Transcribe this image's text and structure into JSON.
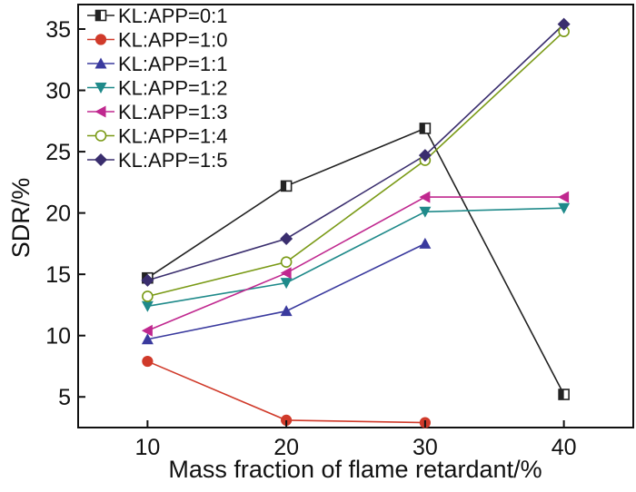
{
  "chart_data": {
    "type": "line",
    "title": "",
    "xlabel": "Mass fraction of flame retardant/%",
    "ylabel": "SDR/%",
    "x": [
      10,
      20,
      30,
      40
    ],
    "xticks": [
      10,
      20,
      30,
      40
    ],
    "yticks": [
      5,
      10,
      15,
      20,
      25,
      30,
      35
    ],
    "xlim": [
      5,
      45
    ],
    "ylim": [
      2.5,
      37
    ],
    "grid": false,
    "legend_position": "top-left",
    "series": [
      {
        "name": "KL:APP=0:1",
        "color": "#222222",
        "marker": "square-half",
        "x": [
          10,
          20,
          30,
          40
        ],
        "values": [
          14.7,
          22.2,
          26.9,
          5.2
        ]
      },
      {
        "name": "KL:APP=1:0",
        "color": "#d03a2a",
        "marker": "circle-filled",
        "x": [
          10,
          20,
          30
        ],
        "values": [
          7.9,
          3.1,
          2.9
        ]
      },
      {
        "name": "KL:APP=1:1",
        "color": "#3a3a9e",
        "marker": "triangle-up",
        "x": [
          10,
          20,
          30
        ],
        "values": [
          9.7,
          12.0,
          17.5
        ]
      },
      {
        "name": "KL:APP=1:2",
        "color": "#1f8a8a",
        "marker": "triangle-down",
        "x": [
          10,
          20,
          30,
          40
        ],
        "values": [
          12.4,
          14.3,
          20.1,
          20.4
        ]
      },
      {
        "name": "KL:APP=1:3",
        "color": "#c0288f",
        "marker": "triangle-left",
        "x": [
          10,
          20,
          30,
          40
        ],
        "values": [
          10.4,
          15.1,
          21.3,
          21.3
        ]
      },
      {
        "name": "KL:APP=1:4",
        "color": "#7a9a16",
        "marker": "circle-open",
        "x": [
          10,
          20,
          30,
          40
        ],
        "values": [
          13.2,
          16.0,
          24.3,
          34.8
        ]
      },
      {
        "name": "KL:APP=1:5",
        "color": "#3a2e6e",
        "marker": "diamond",
        "x": [
          10,
          20,
          30,
          40
        ],
        "values": [
          14.5,
          17.9,
          24.7,
          35.4
        ]
      }
    ]
  }
}
